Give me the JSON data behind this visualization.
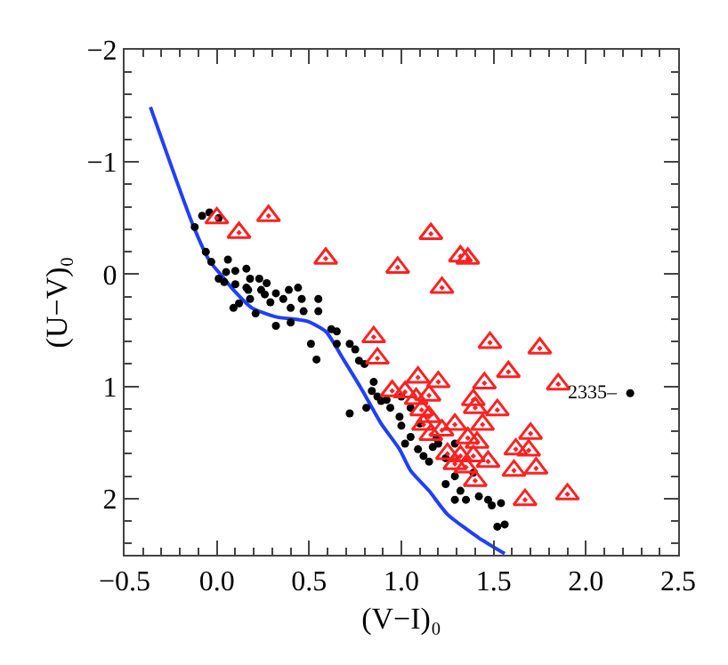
{
  "chart_data": {
    "type": "scatter",
    "xlabel": "(V−I)₀",
    "ylabel": "(U−V)₀",
    "xlim": [
      -0.5,
      2.5
    ],
    "ylim": [
      2.5,
      -2
    ],
    "xticks": [
      {
        "value": -0.5,
        "label": "−0.5"
      },
      {
        "value": 0,
        "label": "0.0"
      },
      {
        "value": 0.5,
        "label": "0.5"
      },
      {
        "value": 1,
        "label": "1.0"
      },
      {
        "value": 1.5,
        "label": "1.5"
      },
      {
        "value": 2,
        "label": "2.0"
      },
      {
        "value": 2.5,
        "label": "2.5"
      }
    ],
    "yticks": [
      {
        "value": -2,
        "label": "−2"
      },
      {
        "value": -1,
        "label": "−1"
      },
      0,
      1,
      2
    ],
    "grid": false,
    "legend": false,
    "series": [
      {
        "type": "line",
        "color": "#1f3fff",
        "marker": "none",
        "line_style": "solid",
        "x": [
          -0.36,
          -0.13,
          -0.04,
          0.04,
          0.09,
          0.19,
          0.32,
          0.49,
          0.59,
          0.69,
          0.79,
          0.89,
          0.99,
          1.05,
          1.15,
          1.25,
          1.42,
          1.56
        ],
        "values": [
          -1.49,
          -0.44,
          -0.12,
          0.04,
          0.14,
          0.3,
          0.38,
          0.42,
          0.51,
          0.77,
          1.04,
          1.33,
          1.56,
          1.75,
          1.93,
          2.14,
          2.35,
          2.49
        ]
      },
      {
        "type": "scatter",
        "color": "#000000",
        "marker": "circle",
        "x": [
          -0.12,
          -0.08,
          -0.04,
          0.01,
          -0.06,
          -0.03,
          0.06,
          0.1,
          0.16,
          0.18,
          0.23,
          0.27,
          0.05,
          0.01,
          0.04,
          0.1,
          0.16,
          0.17,
          0.24,
          0.18,
          0.26,
          0.32,
          0.36,
          0.39,
          0.46,
          0.44,
          0.21,
          0.32,
          0.4,
          0.47,
          0.55,
          0.55,
          0.51,
          0.54,
          0.62,
          0.65,
          0.72,
          0.75,
          0.77,
          0.8,
          0.65,
          0.85,
          0.84,
          0.87,
          0.81,
          0.72,
          0.89,
          0.92,
          0.94,
          0.99,
          1.0,
          1.02,
          1.05,
          1.09,
          1.12,
          1.17,
          1.15,
          1.24,
          1.24,
          1.29,
          1.32,
          1.29,
          1.35,
          1.42,
          1.47,
          1.49,
          1.52,
          1.56,
          1.54,
          1.39,
          1.0,
          1.05,
          1.1,
          1.19,
          1.2,
          1.29,
          2.24,
          0.09,
          0.12,
          0.29,
          0.4
        ],
        "values": [
          -0.42,
          -0.52,
          -0.55,
          -0.5,
          -0.2,
          -0.11,
          -0.13,
          -0.03,
          -0.05,
          0.04,
          0.04,
          0.08,
          -0.02,
          0.04,
          0.07,
          0.09,
          0.12,
          0.14,
          0.14,
          0.22,
          0.18,
          0.17,
          0.22,
          0.14,
          0.22,
          0.12,
          0.35,
          0.46,
          0.43,
          0.33,
          0.22,
          0.33,
          0.62,
          0.76,
          0.49,
          0.51,
          0.62,
          0.67,
          0.77,
          0.8,
          0.62,
          0.96,
          1.04,
          1.09,
          1.19,
          1.24,
          1.13,
          1.12,
          1.19,
          1.27,
          1.35,
          1.51,
          1.45,
          1.56,
          1.62,
          1.54,
          1.67,
          1.64,
          1.87,
          1.8,
          1.93,
          2.01,
          2.01,
          1.98,
          2.01,
          2.06,
          2.25,
          2.23,
          2.04,
          1.77,
          1.09,
          1.19,
          1.33,
          1.46,
          1.51,
          1.51,
          1.06,
          0.3,
          0.26,
          0.25,
          0.3
        ]
      },
      {
        "type": "scatter",
        "color": "#ff2020",
        "marker": "triangle",
        "x": [
          0.0,
          0.12,
          0.28,
          0.59,
          0.98,
          1.16,
          1.32,
          1.36,
          1.22,
          0.85,
          0.87,
          1.48,
          1.75,
          1.09,
          1.2,
          1.15,
          1.45,
          1.58,
          1.85,
          1.39,
          1.4,
          1.52,
          0.95,
          1.02,
          1.29,
          1.22,
          1.44,
          1.41,
          1.36,
          1.25,
          1.32,
          1.39,
          1.47,
          1.29,
          1.35,
          1.4,
          1.7,
          1.62,
          1.69,
          1.61,
          1.73,
          1.67,
          1.9,
          1.11,
          1.15,
          1.12,
          1.16,
          1.08
        ],
        "values": [
          -0.5,
          -0.37,
          -0.52,
          -0.14,
          -0.06,
          -0.36,
          -0.16,
          -0.14,
          0.12,
          0.56,
          0.75,
          0.61,
          0.66,
          0.92,
          0.96,
          1.08,
          0.97,
          0.87,
          0.98,
          1.12,
          1.19,
          1.21,
          1.04,
          1.05,
          1.34,
          1.39,
          1.34,
          1.5,
          1.46,
          1.6,
          1.62,
          1.62,
          1.67,
          1.69,
          1.72,
          1.84,
          1.42,
          1.56,
          1.57,
          1.75,
          1.73,
          2.01,
          1.96,
          1.21,
          1.27,
          1.34,
          1.43,
          1.11
        ]
      }
    ],
    "annotations": [
      {
        "text": "2335–",
        "x": 2.24,
        "y": 1.06
      }
    ]
  }
}
